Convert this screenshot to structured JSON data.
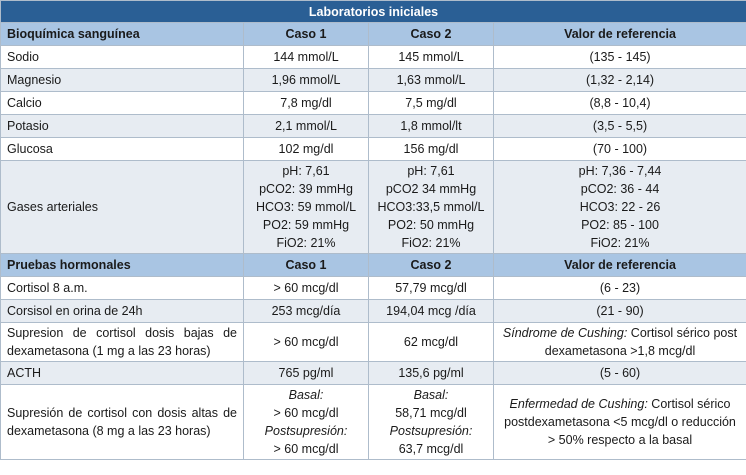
{
  "table": {
    "title": "Laboratorios iniciales",
    "sections": [
      {
        "header": [
          "Bioquímica sanguínea",
          "Caso 1",
          "Caso 2",
          "Valor de referencia"
        ],
        "rows": [
          [
            "Sodio",
            "144 mmol/L",
            "145 mmol/L",
            "(135 - 145)"
          ],
          [
            "Magnesio",
            "1,96 mmol/L",
            "1,63 mmol/L",
            "(1,32 - 2,14)"
          ],
          [
            "Calcio",
            "7,8 mg/dl",
            "7,5 mg/dl",
            "(8,8 - 10,4)"
          ],
          [
            "Potasio",
            "2,1 mmol/L",
            "1,8 mmol/lt",
            "(3,5 - 5,5)"
          ],
          [
            "Glucosa",
            "102 mg/dl",
            "156 mg/dl",
            "(70 - 100)"
          ],
          [
            "Gases arteriales",
            [
              "pH: 7,61",
              "pCO2: 39 mmHg",
              "HCO3: 59 mmol/L",
              "PO2: 59 mmHg",
              "FiO2: 21%"
            ],
            [
              "pH: 7,61",
              "pCO2 34 mmHg",
              "HCO3:33,5 mmol/L",
              "PO2: 50 mmHg",
              "FiO2: 21%"
            ],
            [
              "pH: 7,36 - 7,44",
              "pCO2: 36 - 44",
              "HCO3: 22 - 26",
              "PO2: 85 - 100",
              "FiO2: 21%"
            ]
          ]
        ]
      },
      {
        "header": [
          "Pruebas hormonales",
          "Caso 1",
          "Caso 2",
          "Valor de referencia"
        ],
        "rows": [
          [
            "Cortisol 8 a.m.",
            "> 60 mcg/dl",
            "57,79 mcg/dl",
            "(6 - 23)"
          ],
          [
            "Corsisol en orina de 24h",
            "253 mcg/día",
            "194,04 mcg /día",
            "(21 - 90)"
          ],
          [
            "Supresion de cortisol dosis bajas de dexametasona (1 mg a las 23 horas)",
            "> 60 mcg/dl",
            "62 mcg/dl",
            {
              "lead": "Síndrome de Cushing:",
              "text": "Cortisol sérico post dexametasona >1,8 mcg/dl"
            }
          ],
          [
            "ACTH",
            "765 pg/ml",
            "135,6 pg/ml",
            "(5 - 60)"
          ],
          [
            "Supresión de cortisol con dosis altas de dexametasona (8 mg a las 23 horas)",
            [
              {
                "i": "Basal:"
              },
              "> 60 mcg/dl",
              {
                "i": "Postsupresión:"
              },
              "> 60 mcg/dl"
            ],
            [
              {
                "i": "Basal:"
              },
              "58,71 mcg/dl",
              {
                "i": "Postsupresión:"
              },
              "63,7 mcg/dl"
            ],
            {
              "lead": "Enfermedad de Cushing:",
              "text": "Cortisol sérico postdexametasona <5 mcg/dl o reducción > 50% respecto a la basal"
            }
          ]
        ]
      }
    ]
  }
}
